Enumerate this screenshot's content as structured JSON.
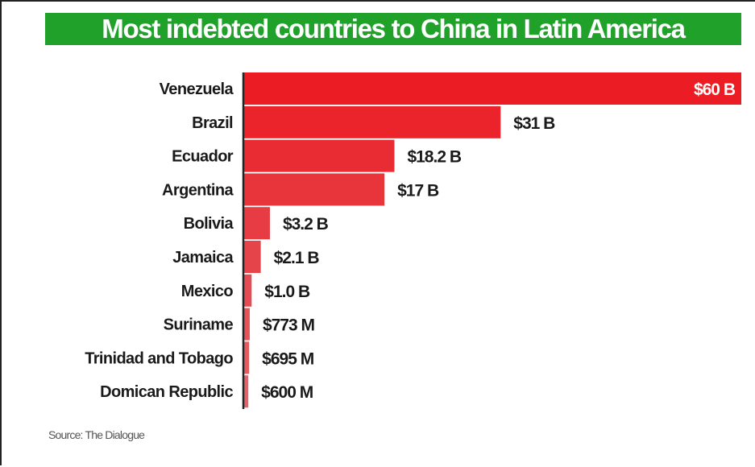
{
  "chart_data": {
    "type": "bar",
    "orientation": "horizontal",
    "title": "Most indebted countries to China in Latin America",
    "categories": [
      "Venezuela",
      "Brazil",
      "Ecuador",
      "Argentina",
      "Bolivia",
      "Jamaica",
      "Mexico",
      "Suriname",
      "Trinidad and Tobago",
      "Domican Republic"
    ],
    "values": [
      60,
      31,
      18.2,
      17,
      3.2,
      2.1,
      1.0,
      0.773,
      0.695,
      0.6
    ],
    "unit": "USD billions",
    "value_labels": [
      "$60 B",
      "$31 B",
      "$18.2 B",
      "$17 B",
      "$3.2 B",
      "$2.1 B",
      "$1.0 B",
      "$773 M",
      "$695 M",
      "$600 M"
    ],
    "xlim": [
      0,
      60
    ],
    "grid": false,
    "source": "Source: The Dialogue"
  },
  "colors": {
    "title_bg": "#1fa12a",
    "bar_top": "#ec1c24",
    "bar_bottom": "#e0646a",
    "axis": "#222222"
  }
}
